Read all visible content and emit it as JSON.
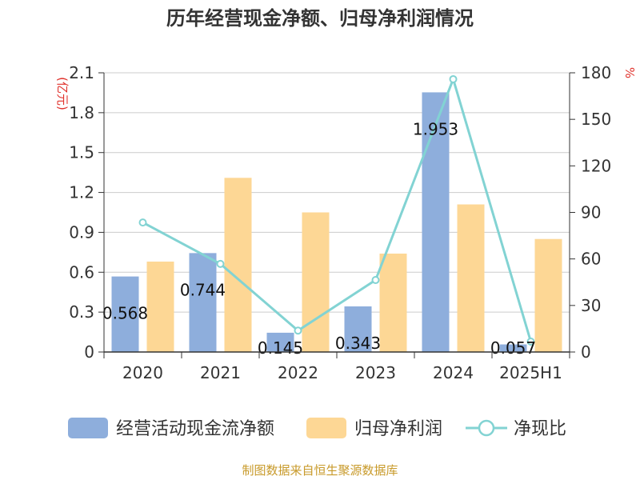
{
  "colors": {
    "cashflow": "#8eaedc",
    "net_profit": "#fdd795",
    "ratio": "#82d3d3",
    "axis_unit": "#e0312b",
    "source": "#c89a2a"
  },
  "chart_data": {
    "type": "bar",
    "title": "历年经营现金净额、归母净利润情况",
    "categories": [
      "2020",
      "2021",
      "2022",
      "2023",
      "2024",
      "2025H1"
    ],
    "series": [
      {
        "name": "经营活动现金流净额",
        "type": "bar",
        "axis": "left",
        "values": [
          0.568,
          0.744,
          0.145,
          0.343,
          1.953,
          0.057
        ]
      },
      {
        "name": "归母净利润",
        "type": "bar",
        "axis": "left",
        "values": [
          0.68,
          1.31,
          1.05,
          0.74,
          1.11,
          0.85
        ]
      },
      {
        "name": "净现比",
        "type": "line",
        "axis": "right",
        "values": [
          83.5,
          56.8,
          13.8,
          46.4,
          175.9,
          6.7
        ]
      }
    ],
    "data_labels": [
      "0.568",
      "0.744",
      "0.145",
      "0.343",
      "1.953",
      "0.057"
    ],
    "y_left": {
      "unit": "(亿元)",
      "ylim": [
        0,
        2.1
      ],
      "ticks": [
        "0",
        "0.3",
        "0.6",
        "0.9",
        "1.2",
        "1.5",
        "1.8",
        "2.1"
      ]
    },
    "y_right": {
      "unit": "%",
      "ylim": [
        0,
        180
      ],
      "ticks": [
        "0",
        "30",
        "60",
        "90",
        "120",
        "150",
        "180"
      ]
    },
    "grid": true,
    "legend": "bottom"
  },
  "footer": {
    "source": "制图数据来自恒生聚源数据库"
  }
}
